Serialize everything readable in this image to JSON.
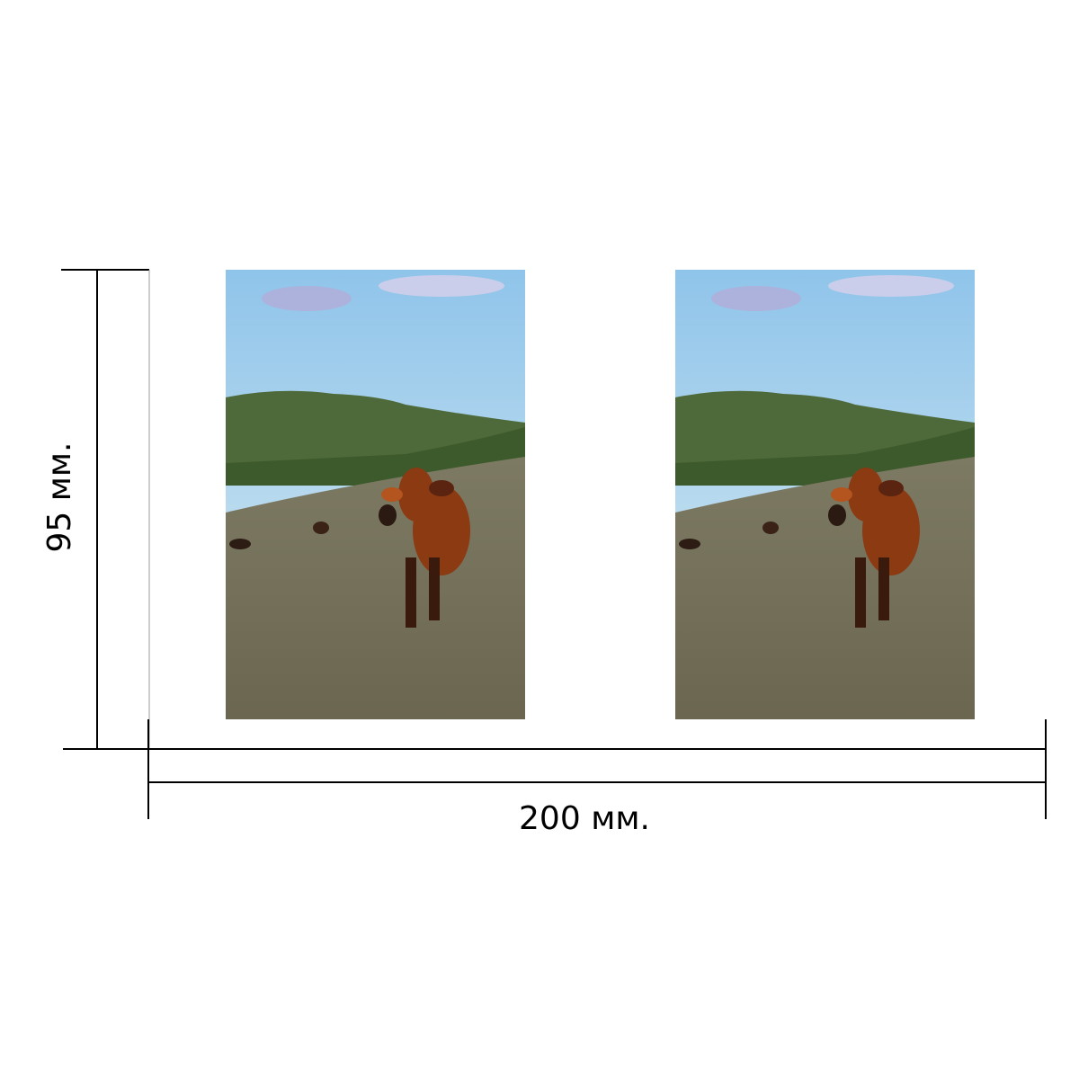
{
  "dimensions": {
    "height": "95 мм.",
    "width": "200 мм."
  }
}
